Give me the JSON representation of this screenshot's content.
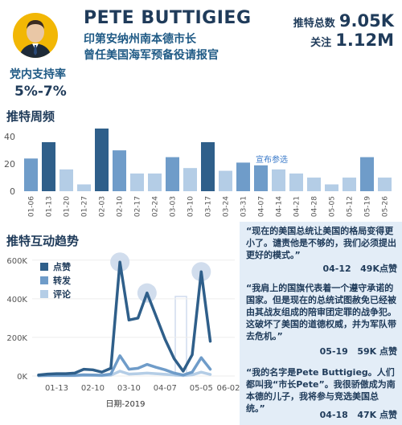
{
  "header": {
    "name": "PETE BUTTIGIEG",
    "subtitle_1": "印第安纳州南本德市长",
    "subtitle_2": "曾任美国海军预备役请报官",
    "tweets_label": "推特总数",
    "tweets_value": "9.05K",
    "followers_label": "关注",
    "followers_value": "1.12M",
    "support_label": "党内支持率",
    "support_value": "5%-7%"
  },
  "colors": {
    "dark": "#2f5f8a",
    "mid": "#6f9cc9",
    "light": "#b4cde6",
    "highlight": "#28507a",
    "panel": "#e3edf7"
  },
  "chart_data": [
    {
      "type": "bar",
      "title": "推特周频",
      "categories": [
        "01-06",
        "01-13",
        "01-20",
        "01-27",
        "02-03",
        "02-10",
        "02-17",
        "02-24",
        "03-03",
        "03-10",
        "03-17",
        "03-24",
        "03-31",
        "04-07",
        "04-14",
        "04-21",
        "04-28",
        "05-05",
        "05-12",
        "05-19",
        "05-26"
      ],
      "values": [
        24,
        36,
        16,
        5,
        46,
        30,
        13,
        13,
        25,
        17,
        36,
        15,
        21,
        19,
        16,
        13,
        10,
        5,
        10,
        25,
        10
      ],
      "shades": [
        "mid",
        "dark",
        "light",
        "light",
        "dark",
        "mid",
        "light",
        "light",
        "mid",
        "light",
        "dark",
        "light",
        "mid",
        "mid",
        "light",
        "light",
        "light",
        "light",
        "light",
        "mid",
        "light"
      ],
      "yticks": [
        0,
        20,
        40
      ],
      "ylim": [
        0,
        46
      ],
      "annotation": "宣布参选",
      "annotation_category": "04-14"
    },
    {
      "type": "line",
      "title": "推特互动趋势",
      "xlabel": "日期-2019",
      "xtick_labels": [
        "01-13",
        "02-10",
        "03-10",
        "04-07",
        "05-05",
        "06-02"
      ],
      "ytick_labels": [
        "0K",
        "200K",
        "400K",
        "600K"
      ],
      "yticks": [
        0,
        200,
        400,
        600
      ],
      "ylim": [
        0,
        620
      ],
      "unit": "K",
      "x_count": 22,
      "xtick_indices": [
        2,
        6,
        10,
        14,
        18,
        21
      ],
      "series": [
        {
          "name": "点赞",
          "shade": "dark",
          "values": [
            5,
            10,
            12,
            12,
            15,
            35,
            32,
            20,
            40,
            590,
            290,
            300,
            430,
            310,
            190,
            90,
            25,
            110,
            540,
            180,
            null,
            null
          ]
        },
        {
          "name": "转发",
          "shade": "mid",
          "values": [
            2,
            3,
            3,
            3,
            3,
            6,
            5,
            4,
            10,
            105,
            35,
            40,
            60,
            45,
            32,
            15,
            5,
            20,
            95,
            35,
            null,
            null
          ]
        },
        {
          "name": "评论",
          "shade": "light",
          "values": [
            1,
            2,
            2,
            2,
            2,
            3,
            3,
            2,
            4,
            25,
            10,
            12,
            15,
            12,
            9,
            5,
            2,
            6,
            20,
            8,
            null,
            null
          ]
        }
      ],
      "highlights": [
        9,
        12,
        18
      ]
    }
  ],
  "quotes": [
    {
      "text": "“现在的美国总统让美国的格局变得更小了。谴责他是不够的，我们必须提出更好的模式。”",
      "date": "04-12",
      "likes": "49K点赞"
    },
    {
      "text": "“我肩上的国旗代表着一个遵守承诺的国家。但是现在的总统试图赦免已经被由其战友组成的陪审团定罪的战争犯。这破坏了美国的道德权威，并为军队带去危机。”",
      "date": "05-19",
      "likes": "59K 点赞"
    },
    {
      "text": "“我的名字是Pete Buttigieg。人们都叫我“市长Pete”。我很骄傲成为南本德的儿子，我将参与竞选美国总统。”",
      "date": "04-18",
      "likes": "47K 点赞"
    }
  ]
}
